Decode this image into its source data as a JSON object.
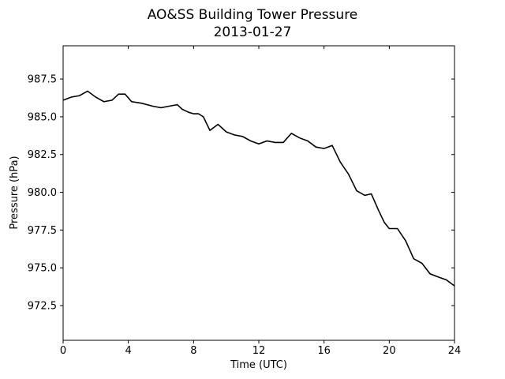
{
  "chart_data": {
    "type": "line",
    "title": "AO&SS Building Tower Pressure",
    "subtitle": "2013-01-27",
    "xlabel": "Time (UTC)",
    "ylabel": "Pressure (hPa)",
    "xlim": [
      0,
      24
    ],
    "ylim": [
      970.2,
      989.7
    ],
    "xticks": [
      0,
      4,
      8,
      12,
      16,
      20,
      24
    ],
    "xtick_labels": [
      "0",
      "4",
      "8",
      "12",
      "16",
      "20",
      "24"
    ],
    "yticks": [
      972.5,
      975.0,
      977.5,
      980.0,
      982.5,
      985.0,
      987.5
    ],
    "ytick_labels": [
      "972.5",
      "975.0",
      "977.5",
      "980.0",
      "982.5",
      "985.0",
      "987.5"
    ],
    "grid": false,
    "line_color": "#000000",
    "series": [
      {
        "x": [
          0,
          0.5,
          1.0,
          1.5,
          2.0,
          2.5,
          3.0,
          3.4,
          3.8,
          4.2,
          4.8,
          5.5,
          6.0,
          6.5,
          7.0,
          7.3,
          7.7,
          8.0,
          8.3,
          8.6,
          9.0,
          9.5,
          10.0,
          10.5,
          11.0,
          11.5,
          12.0,
          12.5,
          13.0,
          13.5,
          14.0,
          14.5,
          15.0,
          15.5,
          16.0,
          16.5,
          17.0,
          17.5,
          18.0,
          18.5,
          18.9,
          19.3,
          19.7,
          20.0,
          20.5,
          21.0,
          21.5,
          22.0,
          22.5,
          23.0,
          23.5,
          24.0
        ],
        "y": [
          986.1,
          986.3,
          986.4,
          986.7,
          986.3,
          986.0,
          986.1,
          986.5,
          986.5,
          986.0,
          985.9,
          985.7,
          985.6,
          985.7,
          985.8,
          985.5,
          985.3,
          985.2,
          985.2,
          985.0,
          984.1,
          984.5,
          984.0,
          983.8,
          983.7,
          983.4,
          983.2,
          983.4,
          983.3,
          983.3,
          983.9,
          983.6,
          983.4,
          983.0,
          982.9,
          983.1,
          982.0,
          981.2,
          980.1,
          979.8,
          979.9,
          978.9,
          978.0,
          977.6,
          977.6,
          976.8,
          975.6,
          975.3,
          974.6,
          974.4,
          974.2,
          973.8
        ]
      }
    ]
  }
}
